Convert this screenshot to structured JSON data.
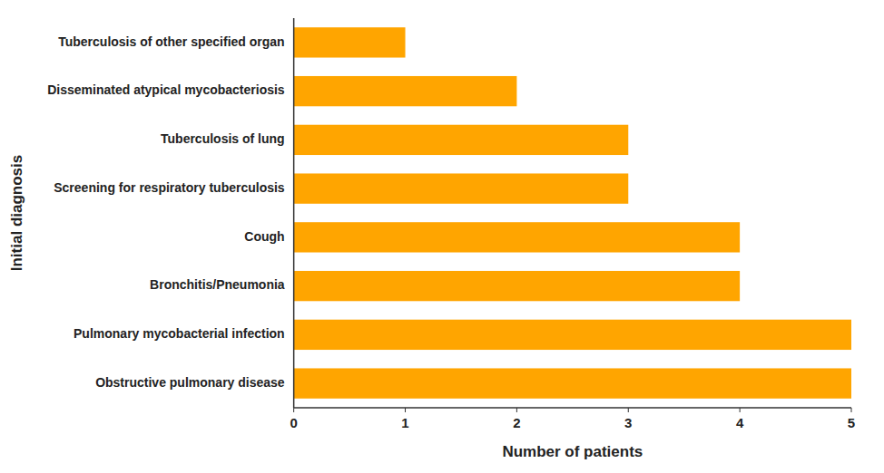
{
  "chart_data": {
    "type": "bar",
    "orientation": "horizontal",
    "categories": [
      "Tuberculosis of other specified organ",
      "Disseminated atypical mycobacteriosis",
      "Tuberculosis of lung",
      "Screening for respiratory tuberculosis",
      "Cough",
      "Bronchitis/Pneumonia",
      "Pulmonary mycobacterial infection",
      "Obstructive pulmonary disease"
    ],
    "values": [
      1,
      2,
      3,
      3,
      4,
      4,
      5,
      5
    ],
    "color": "#FFA500",
    "xlabel": "Number of patients",
    "ylabel": "Initial diagnosis",
    "xlim": [
      0,
      5
    ],
    "xticks": [
      0,
      1,
      2,
      3,
      4,
      5
    ],
    "grid": false
  }
}
